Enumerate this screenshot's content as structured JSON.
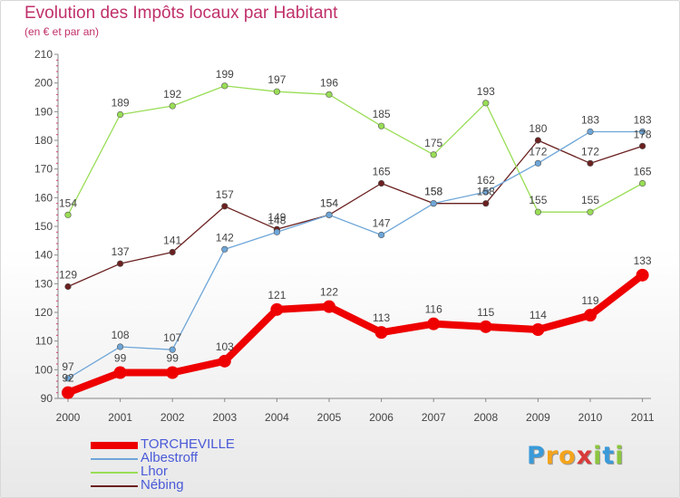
{
  "title": "Evolution des Impôts locaux par Habitant",
  "subtitle": "(en € et par an)",
  "logo": {
    "letters": [
      "P",
      "r",
      "o",
      "x",
      "i",
      "t",
      "i"
    ],
    "colors": [
      "#3a9ad9",
      "#f4a41c",
      "#f4a41c",
      "#d93a3a",
      "#8cc63f",
      "#3a9ad9",
      "#8cc63f"
    ]
  },
  "chart_data": {
    "type": "line",
    "x": [
      "2000",
      "2001",
      "2002",
      "2003",
      "2004",
      "2005",
      "2006",
      "2007",
      "2008",
      "2009",
      "2010",
      "2011"
    ],
    "ylim": [
      90,
      210
    ],
    "yticks": [
      90,
      100,
      110,
      120,
      130,
      140,
      150,
      160,
      170,
      180,
      190,
      200,
      210
    ],
    "grid": false,
    "legend_position": "bottom-left",
    "series": [
      {
        "name": "TORCHEVILLE",
        "color": "#ee0000",
        "values": [
          92,
          99,
          99,
          103,
          121,
          122,
          113,
          116,
          115,
          114,
          119,
          133
        ]
      },
      {
        "name": "Albestroff",
        "color": "#6ea6d8",
        "values": [
          97,
          108,
          107,
          142,
          148,
          154,
          147,
          158,
          162,
          172,
          183,
          183
        ]
      },
      {
        "name": "Lhor",
        "color": "#99dd55",
        "values": [
          154,
          189,
          192,
          199,
          197,
          196,
          185,
          175,
          193,
          155,
          155,
          165
        ]
      },
      {
        "name": "Nébing",
        "color": "#6b2020",
        "values": [
          129,
          137,
          141,
          157,
          149,
          154,
          165,
          158,
          158,
          180,
          172,
          178
        ]
      }
    ]
  }
}
